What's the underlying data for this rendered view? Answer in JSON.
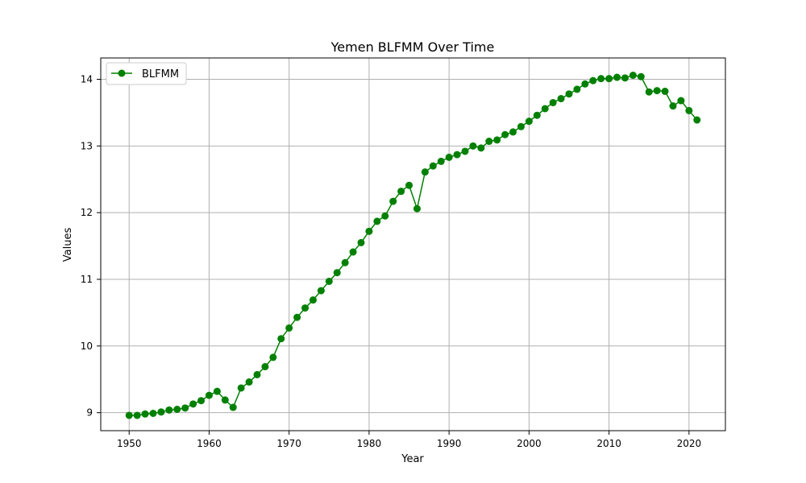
{
  "chart_data": {
    "type": "line",
    "title": "Yemen BLFMM Over Time",
    "xlabel": "Year",
    "ylabel": "Values",
    "xlim": [
      1946.45,
      2024.55
    ],
    "ylim": [
      8.73,
      14.32
    ],
    "xticks": [
      1950,
      1960,
      1970,
      1980,
      1990,
      2000,
      2010,
      2020
    ],
    "yticks": [
      9,
      10,
      11,
      12,
      13,
      14
    ],
    "grid": true,
    "legend_position": "upper-left",
    "colors": {
      "line": "#008000"
    },
    "series": [
      {
        "name": "BLFMM",
        "x": [
          1950,
          1951,
          1952,
          1953,
          1954,
          1955,
          1956,
          1957,
          1958,
          1959,
          1960,
          1961,
          1962,
          1963,
          1964,
          1965,
          1966,
          1967,
          1968,
          1969,
          1970,
          1971,
          1972,
          1973,
          1974,
          1975,
          1976,
          1977,
          1978,
          1979,
          1980,
          1981,
          1982,
          1983,
          1984,
          1985,
          1986,
          1987,
          1988,
          1989,
          1990,
          1991,
          1992,
          1993,
          1994,
          1995,
          1996,
          1997,
          1998,
          1999,
          2000,
          2001,
          2002,
          2003,
          2004,
          2005,
          2006,
          2007,
          2008,
          2009,
          2010,
          2011,
          2012,
          2013,
          2014,
          2015,
          2016,
          2017,
          2018,
          2019,
          2020,
          2021
        ],
        "values": [
          8.96,
          8.96,
          8.98,
          8.99,
          9.01,
          9.04,
          9.05,
          9.07,
          9.13,
          9.18,
          9.26,
          9.32,
          9.19,
          9.08,
          9.37,
          9.46,
          9.57,
          9.69,
          9.83,
          10.11,
          10.27,
          10.43,
          10.57,
          10.69,
          10.83,
          10.97,
          11.1,
          11.25,
          11.41,
          11.55,
          11.72,
          11.87,
          11.95,
          12.17,
          12.32,
          12.41,
          12.06,
          12.61,
          12.7,
          12.77,
          12.83,
          12.87,
          12.92,
          13.0,
          12.97,
          13.07,
          13.09,
          13.17,
          13.21,
          13.29,
          13.37,
          13.46,
          13.56,
          13.65,
          13.71,
          13.78,
          13.85,
          13.93,
          13.98,
          14.01,
          14.01,
          14.03,
          14.02,
          14.06,
          14.04,
          13.81,
          13.83,
          13.82,
          13.6,
          13.68,
          13.53,
          13.39
        ]
      }
    ]
  }
}
